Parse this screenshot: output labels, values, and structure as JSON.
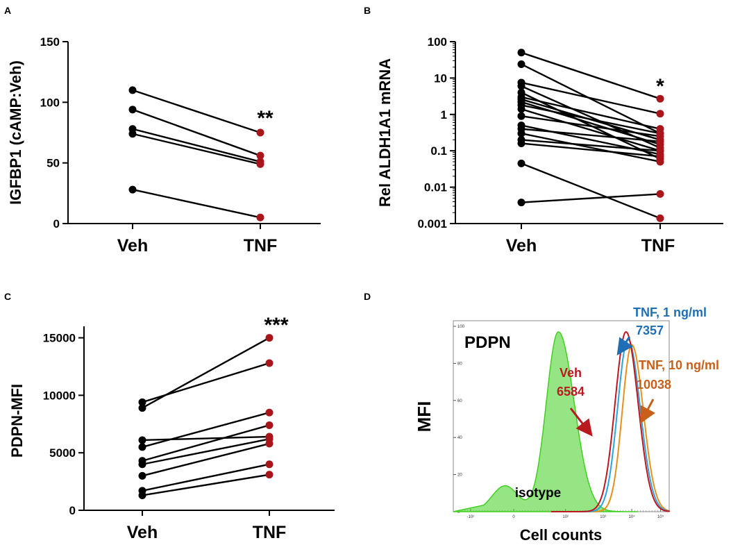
{
  "chart_data": [
    {
      "panel": "A",
      "type": "line",
      "categories": [
        "Veh",
        "TNF"
      ],
      "ylabel": "IGFBP1 (cAMP:Veh)",
      "ylim": [
        0,
        150
      ],
      "yticks": [
        "0",
        "50",
        "100",
        "150"
      ],
      "significance": "**",
      "pairs": [
        [
          110,
          75
        ],
        [
          94,
          56
        ],
        [
          78,
          51
        ],
        [
          74,
          49
        ],
        [
          28,
          5
        ]
      ],
      "colors": {
        "veh": "#000000",
        "tnf": "#a8151b"
      }
    },
    {
      "panel": "B",
      "type": "line",
      "scale": "log",
      "categories": [
        "Veh",
        "TNF"
      ],
      "ylabel": "Rel ALDH1A1 mRNA",
      "ylim": [
        0.001,
        100
      ],
      "yticks": [
        "0.001",
        "0.01",
        "0.1",
        "1",
        "10",
        "100"
      ],
      "significance": "*",
      "pairs": [
        [
          50,
          2.7
        ],
        [
          24,
          0.3
        ],
        [
          7.5,
          1.05
        ],
        [
          6,
          0.12
        ],
        [
          4,
          0.06
        ],
        [
          3,
          0.4
        ],
        [
          2.6,
          0.2
        ],
        [
          2.2,
          0.15
        ],
        [
          1.8,
          0.3
        ],
        [
          1.4,
          0.1
        ],
        [
          0.9,
          0.25
        ],
        [
          0.5,
          0.08
        ],
        [
          0.4,
          0.18
        ],
        [
          0.3,
          0.05
        ],
        [
          0.2,
          0.1
        ],
        [
          0.16,
          0.07
        ],
        [
          0.045,
          0.0014
        ],
        [
          0.0038,
          0.0065
        ]
      ],
      "colors": {
        "veh": "#000000",
        "tnf": "#a8151b"
      }
    },
    {
      "panel": "C",
      "type": "line",
      "categories": [
        "Veh",
        "TNF"
      ],
      "ylabel": "PDPN-MFI",
      "ylim": [
        0,
        16000
      ],
      "yticks": [
        "0",
        "5000",
        "10000",
        "15000"
      ],
      "significance": "***",
      "pairs": [
        [
          9400,
          12800
        ],
        [
          8900,
          15000
        ],
        [
          6100,
          6400
        ],
        [
          5500,
          8500
        ],
        [
          4300,
          7400
        ],
        [
          4000,
          6200
        ],
        [
          3000,
          5800
        ],
        [
          1700,
          4000
        ],
        [
          1300,
          3100
        ]
      ],
      "colors": {
        "veh": "#000000",
        "tnf": "#a8151b"
      }
    },
    {
      "panel": "D",
      "type": "area",
      "title": "PDPN",
      "xlabel": "Cell counts",
      "ylabel": "MFI",
      "ylim": [
        0,
        100
      ],
      "yticks": [
        "0",
        "20",
        "40",
        "60",
        "80",
        "100"
      ],
      "xticks": [
        "-10²",
        "0",
        "10²",
        "10³",
        "10⁴",
        "10⁵"
      ],
      "series": [
        {
          "name": "isotype",
          "peak_log10": 2.0,
          "peak_height": 97,
          "color": "#3fcf1f"
        },
        {
          "name": "Veh",
          "value": "6584",
          "peak_log10": 3.8,
          "peak_height": 97,
          "color": "#c0151e"
        },
        {
          "name": "TNF, 1 ng/ml",
          "value": "7357",
          "peak_log10": 3.87,
          "peak_height": 93,
          "color": "#2aa4df"
        },
        {
          "name": "TNF, 10 ng/ml",
          "value": "10038",
          "peak_log10": 4.0,
          "peak_height": 90,
          "color": "#e8901c"
        }
      ],
      "annotations": {
        "veh_label": "Veh",
        "veh_value": "6584",
        "tnf1_label": "TNF, 1 ng/ml",
        "tnf1_value": "7357",
        "tnf10_label": "TNF, 10 ng/ml",
        "tnf10_value": "10038",
        "isotype_label": "isotype"
      },
      "annotation_colors": {
        "veh": "#b81a1f",
        "tnf1": "#1f6fb5",
        "tnf10": "#c9601a"
      }
    }
  ]
}
